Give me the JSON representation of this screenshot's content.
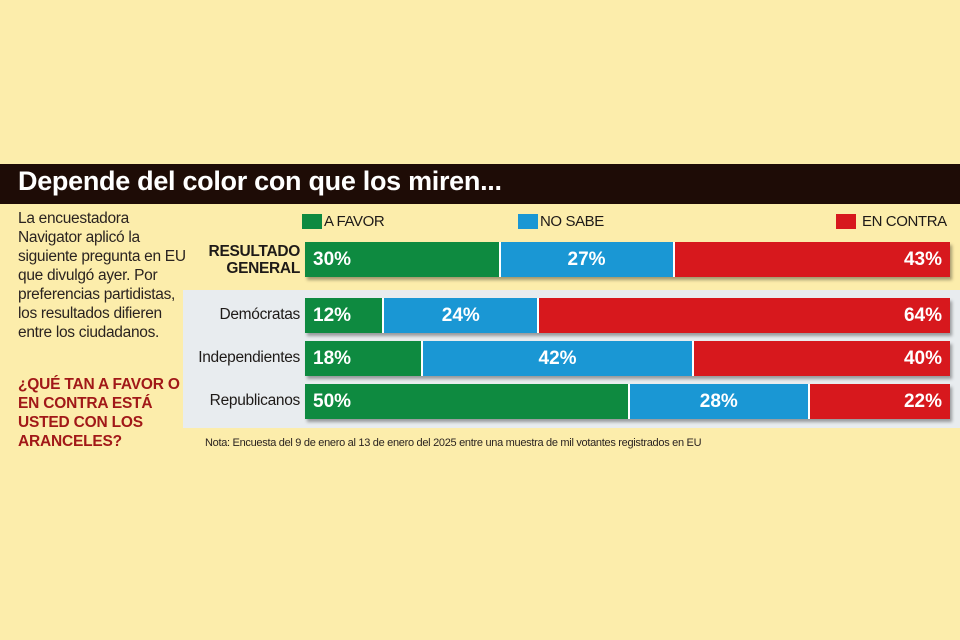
{
  "title": "Depende del color con que los miren...",
  "intro_text": "La encuestadora Navigator aplicó la siguiente pregunta en EU que divulgó ayer. Por preferencias partidistas, los resultados difieren entre los ciudadanos.",
  "question": "¿QUÉ TAN A FAVOR O EN CONTRA ESTÁ USTED CON LOS ARANCELES?",
  "note": "Nota: Encuesta del 9 de enero al 13 de enero del 2025 entre una muestra de mil votantes registrados en EU",
  "colors": {
    "a_favor": "#0e8a40",
    "no_sabe": "#1a97d4",
    "en_contra": "#d7181d"
  },
  "chart_data": {
    "type": "bar",
    "orientation": "horizontal-stacked-100",
    "title": "Depende del color con que los miren...",
    "categories": [
      "RESULTADO GENERAL",
      "Demócratas",
      "Independientes",
      "Republicanos"
    ],
    "series": [
      {
        "name": "A FAVOR",
        "values": [
          30,
          12,
          18,
          50
        ],
        "labels": [
          "30%",
          "12%",
          "18%",
          "50%"
        ]
      },
      {
        "name": "NO SABE",
        "values": [
          27,
          24,
          42,
          28
        ],
        "labels": [
          "27%",
          "24%",
          "42%",
          "28%"
        ]
      },
      {
        "name": "EN CONTRA",
        "values": [
          43,
          64,
          40,
          22
        ],
        "labels": [
          "43%",
          "64%",
          "40%",
          "22%"
        ]
      }
    ],
    "xlim": [
      0,
      100
    ],
    "legend": "top",
    "grid": false,
    "xlabel": "",
    "ylabel": ""
  }
}
